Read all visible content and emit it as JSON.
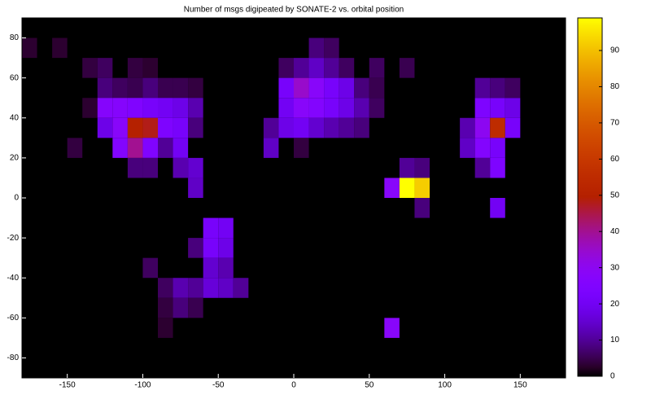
{
  "chart_data": {
    "type": "heatmap",
    "title": "Number of msgs digipeated by SONATE-2 vs. orbital position",
    "x": [
      -180,
      -160,
      -140,
      -130,
      -110,
      -100,
      -130,
      -120,
      -110,
      -100,
      -90,
      -80,
      -70,
      -140,
      -130,
      -120,
      -110,
      -100,
      -90,
      -80,
      -70,
      -130,
      -120,
      -110,
      -100,
      -90,
      -80,
      -70,
      -150,
      -120,
      -110,
      -100,
      -90,
      -80,
      -110,
      -100,
      -80,
      -70,
      -70,
      -60,
      -50,
      -70,
      -60,
      -50,
      -100,
      -60,
      -50,
      -90,
      -80,
      -70,
      -60,
      -50,
      -40,
      -90,
      -80,
      -70,
      -90,
      10,
      20,
      -10,
      0,
      10,
      20,
      30,
      -10,
      0,
      10,
      20,
      30,
      40,
      50,
      -10,
      0,
      10,
      20,
      30,
      40,
      50,
      -20,
      -10,
      0,
      10,
      20,
      30,
      40,
      -20,
      0,
      120,
      130,
      140,
      110,
      120,
      130,
      140,
      110,
      120,
      130,
      120,
      130,
      120,
      130,
      140,
      50,
      70,
      70,
      80,
      60,
      70,
      80,
      80,
      130,
      60
    ],
    "y": [
      70,
      70,
      60,
      60,
      60,
      60,
      50,
      50,
      50,
      50,
      50,
      50,
      50,
      40,
      40,
      40,
      40,
      40,
      40,
      40,
      40,
      30,
      30,
      30,
      30,
      30,
      30,
      30,
      20,
      20,
      20,
      20,
      20,
      20,
      10,
      10,
      10,
      10,
      0,
      -20,
      -20,
      -30,
      -30,
      -30,
      -40,
      -40,
      -40,
      -50,
      -50,
      -50,
      -50,
      -50,
      -50,
      -60,
      -60,
      -60,
      -70,
      70,
      70,
      60,
      60,
      60,
      60,
      60,
      50,
      50,
      50,
      50,
      50,
      50,
      50,
      40,
      40,
      40,
      40,
      40,
      40,
      40,
      30,
      30,
      30,
      30,
      30,
      30,
      30,
      20,
      20,
      40,
      40,
      40,
      30,
      30,
      30,
      30,
      20,
      20,
      20,
      10,
      10,
      50,
      50,
      50,
      60,
      60,
      10,
      10,
      0,
      0,
      0,
      -10,
      -10,
      -70
    ],
    "values": [
      3,
      3,
      4,
      6,
      4,
      3,
      8,
      6,
      5,
      8,
      5,
      5,
      4,
      3,
      27,
      27,
      25,
      22,
      20,
      18,
      12,
      18,
      28,
      50,
      48,
      24,
      22,
      8,
      4,
      26,
      40,
      25,
      10,
      20,
      8,
      8,
      12,
      15,
      14,
      22,
      20,
      8,
      22,
      18,
      6,
      15,
      12,
      6,
      12,
      10,
      16,
      14,
      10,
      4,
      8,
      5,
      3,
      8,
      6,
      6,
      10,
      14,
      10,
      6,
      22,
      35,
      28,
      22,
      18,
      8,
      5,
      20,
      28,
      26,
      22,
      18,
      12,
      6,
      10,
      18,
      20,
      15,
      12,
      10,
      8,
      14,
      4,
      24,
      22,
      18,
      12,
      30,
      55,
      22,
      14,
      26,
      22,
      10,
      24,
      10,
      8,
      6,
      6,
      5,
      10,
      8,
      28,
      99,
      92,
      8,
      20,
      28
    ],
    "xlim": [
      -180,
      180
    ],
    "ylim": [
      -90,
      90
    ],
    "xticks": [
      -150,
      -100,
      -50,
      0,
      50,
      100,
      150
    ],
    "yticks": [
      -80,
      -60,
      -40,
      -20,
      0,
      20,
      40,
      60,
      80
    ],
    "clim": [
      0,
      99
    ],
    "cticks": [
      0,
      10,
      20,
      30,
      40,
      50,
      60,
      70,
      80,
      90
    ],
    "colormap": "gnuplot",
    "background": "#000000"
  }
}
